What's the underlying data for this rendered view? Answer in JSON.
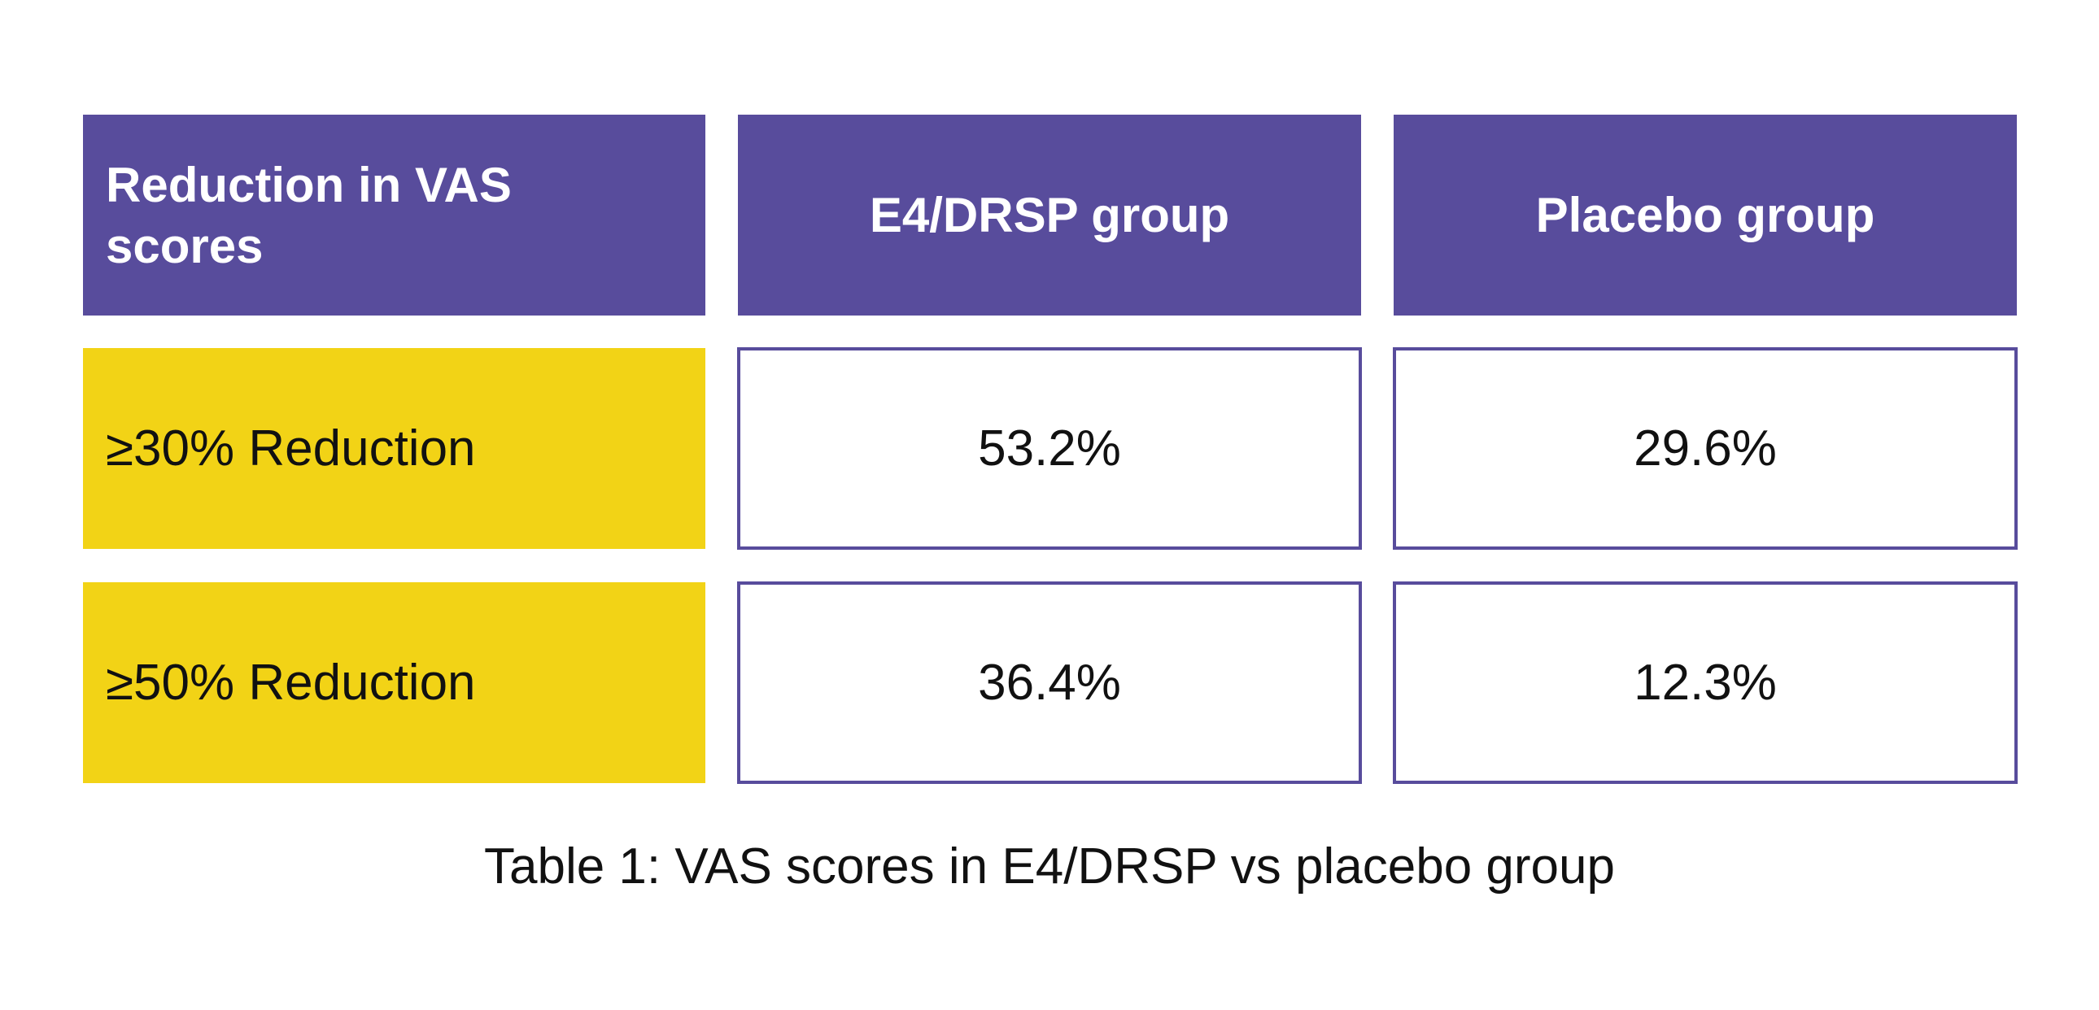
{
  "table": {
    "headers": [
      "Reduction in VAS scores",
      "E4/DRSP group",
      "Placebo group"
    ],
    "rows": [
      {
        "label": "≥30% Reduction",
        "e4_drsp": "53.2%",
        "placebo": "29.6%"
      },
      {
        "label": "≥50% Reduction",
        "e4_drsp": "36.4%",
        "placebo": "12.3%"
      }
    ]
  },
  "caption": "Table 1: VAS scores in E4/DRSP vs placebo group",
  "colors": {
    "header_bg": "#584c9c",
    "label_bg": "#f2d316",
    "border": "#584c9c"
  }
}
